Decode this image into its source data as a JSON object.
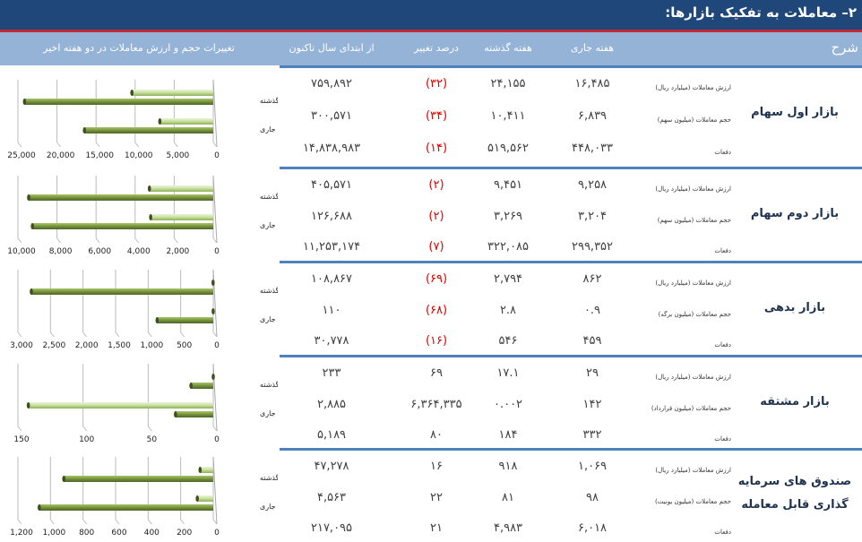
{
  "title": "۲– معاملات به تفکیک بازارها:",
  "header": {
    "desc": "شرح",
    "current": "هفته جاری",
    "last": "هفته گذشته",
    "pct": "درصد تغییر",
    "ytd": "از ابتدای سال تاکنون",
    "chart": "تغییرات حجم و ارزش معاملات در دو هفته اخیر"
  },
  "colors": {
    "title_bg": "#1f477a",
    "header_bg": "#95b3d7",
    "separator": "#4f81bd",
    "negative": "#e00000",
    "bar_value": "#76933c",
    "bar_volume": "#c5e09b"
  },
  "markets": [
    {
      "name": "بازار اول سهام",
      "rows": [
        {
          "label": "ارزش معاملات (میلیارد ریال)",
          "current": "۱۶,۴۸۵",
          "last": "۲۴,۱۵۵",
          "pct": "(۳۲)",
          "neg": true,
          "ytd": "۷۵۹,۸۹۲"
        },
        {
          "label": "حجم معاملات (میلیون سهم)",
          "current": "۶,۸۳۹",
          "last": "۱۰,۴۱۱",
          "pct": "(۳۴)",
          "neg": true,
          "ytd": "۳۰۰,۵۷۱"
        },
        {
          "label": "دفعات",
          "current": "۴۴۸,۰۳۳",
          "last": "۵۱۹,۵۶۲",
          "pct": "(۱۴)",
          "neg": true,
          "ytd": "۱۴,۸۳۸,۹۸۳"
        }
      ]
    },
    {
      "name": "بازار دوم سهام",
      "rows": [
        {
          "label": "ارزش معاملات (میلیارد ریال)",
          "current": "۹,۲۵۸",
          "last": "۹,۴۵۱",
          "pct": "(۲)",
          "neg": true,
          "ytd": "۴۰۵,۵۷۱"
        },
        {
          "label": "حجم معاملات (میلیون سهم)",
          "current": "۳,۲۰۴",
          "last": "۳,۲۶۹",
          "pct": "(۲)",
          "neg": true,
          "ytd": "۱۲۶,۶۸۸"
        },
        {
          "label": "دفعات",
          "current": "۲۹۹,۳۵۲",
          "last": "۳۲۲,۰۸۵",
          "pct": "(۷)",
          "neg": true,
          "ytd": "۱۱,۲۵۳,۱۷۴"
        }
      ]
    },
    {
      "name": "بازار بدهی",
      "rows": [
        {
          "label": "ارزش معاملات (میلیارد ریال)",
          "current": "۸۶۲",
          "last": "۲,۷۹۴",
          "pct": "(۶۹)",
          "neg": true,
          "ytd": "۱۰۸,۸۶۷"
        },
        {
          "label": "حجم معاملات (میلیون برگه)",
          "current": "۰.۹",
          "last": "۲.۸",
          "pct": "(۶۸)",
          "neg": true,
          "ytd": "۱۱۰"
        },
        {
          "label": "دفعات",
          "current": "۴۵۹",
          "last": "۵۴۶",
          "pct": "(۱۶)",
          "neg": true,
          "ytd": "۳۰,۷۷۸"
        }
      ]
    },
    {
      "name": "بازار مشتقه",
      "rows": [
        {
          "label": "ارزش معاملات (میلیارد ریال)",
          "current": "۲۹",
          "last": "۱۷.۱",
          "pct": "۶۹",
          "neg": false,
          "ytd": "۲۳۳"
        },
        {
          "label": "حجم معاملات (میلیون قرارداد)",
          "current": "۱۴۲",
          "last": "۰.۰۰۲",
          "pct": "۶,۳۶۴,۳۳۵",
          "neg": false,
          "ytd": "۲,۸۸۵"
        },
        {
          "label": "دفعات",
          "current": "۳۳۲",
          "last": "۱۸۴",
          "pct": "۸۰",
          "neg": false,
          "ytd": "۵,۱۸۹"
        }
      ]
    },
    {
      "name": "صندوق های سرمایه گذاری قابل معامله",
      "rows": [
        {
          "label": "ارزش معاملات (میلیارد ریال)",
          "current": "۱,۰۶۹",
          "last": "۹۱۸",
          "pct": "۱۶",
          "neg": false,
          "ytd": "۴۷,۲۷۸"
        },
        {
          "label": "حجم معاملات (میلیون یونیت)",
          "current": "۹۸",
          "last": "۸۱",
          "pct": "۲۲",
          "neg": false,
          "ytd": "۴,۵۶۳"
        },
        {
          "label": "دفعات",
          "current": "۶,۰۱۸",
          "last": "۴,۹۸۳",
          "pct": "۲۱",
          "neg": false,
          "ytd": "۲۱۷,۰۹۵"
        }
      ]
    }
  ],
  "chart_data": [
    {
      "type": "bar",
      "orientation": "horizontal",
      "categories": [
        "هفته گذشته",
        "هفته جاری"
      ],
      "series": [
        {
          "name": "volume",
          "values": [
            10411,
            6839
          ]
        },
        {
          "name": "value",
          "values": [
            24155,
            16485
          ]
        }
      ],
      "xlim": [
        0,
        25000
      ],
      "ticks": [
        "0",
        "5,000",
        "10,000",
        "15,000",
        "20,000",
        "25,000"
      ],
      "tick_values": [
        0,
        5000,
        10000,
        15000,
        20000,
        25000
      ]
    },
    {
      "type": "bar",
      "orientation": "horizontal",
      "categories": [
        "هفته گذشته",
        "هفته جاری"
      ],
      "series": [
        {
          "name": "volume",
          "values": [
            3269,
            3204
          ]
        },
        {
          "name": "value",
          "values": [
            9451,
            9258
          ]
        }
      ],
      "xlim": [
        0,
        10000
      ],
      "ticks": [
        "0",
        "2,000",
        "4,000",
        "6,000",
        "8,000",
        "10,000"
      ],
      "tick_values": [
        0,
        2000,
        4000,
        6000,
        8000,
        10000
      ]
    },
    {
      "type": "bar",
      "orientation": "horizontal",
      "categories": [
        "هفته گذشته",
        "هفته جاری"
      ],
      "series": [
        {
          "name": "volume",
          "values": [
            2.8,
            0.9
          ]
        },
        {
          "name": "value",
          "values": [
            2794,
            862
          ]
        }
      ],
      "xlim": [
        0,
        3000
      ],
      "ticks": [
        "0",
        "500",
        "1,000",
        "1,500",
        "2,000",
        "2,500",
        "3,000"
      ],
      "tick_values": [
        0,
        500,
        1000,
        1500,
        2000,
        2500,
        3000
      ]
    },
    {
      "type": "bar",
      "orientation": "horizontal",
      "categories": [
        "هفته گذشته",
        "هفته جاری"
      ],
      "series": [
        {
          "name": "volume",
          "values": [
            0.002,
            142
          ]
        },
        {
          "name": "value",
          "values": [
            17.1,
            29
          ]
        }
      ],
      "xlim": [
        0,
        150
      ],
      "ticks": [
        "0",
        "50",
        "100",
        "150"
      ],
      "tick_values": [
        0,
        50,
        100,
        150
      ]
    },
    {
      "type": "bar",
      "orientation": "horizontal",
      "categories": [
        "هفته گذشته",
        "هفته جاری"
      ],
      "series": [
        {
          "name": "volume",
          "values": [
            81,
            98
          ]
        },
        {
          "name": "value",
          "values": [
            918,
            1069
          ]
        }
      ],
      "xlim": [
        0,
        1200
      ],
      "ticks": [
        "0",
        "200",
        "400",
        "600",
        "800",
        "1,000",
        "1,200"
      ],
      "tick_values": [
        0,
        200,
        400,
        600,
        800,
        1000,
        1200
      ]
    }
  ]
}
